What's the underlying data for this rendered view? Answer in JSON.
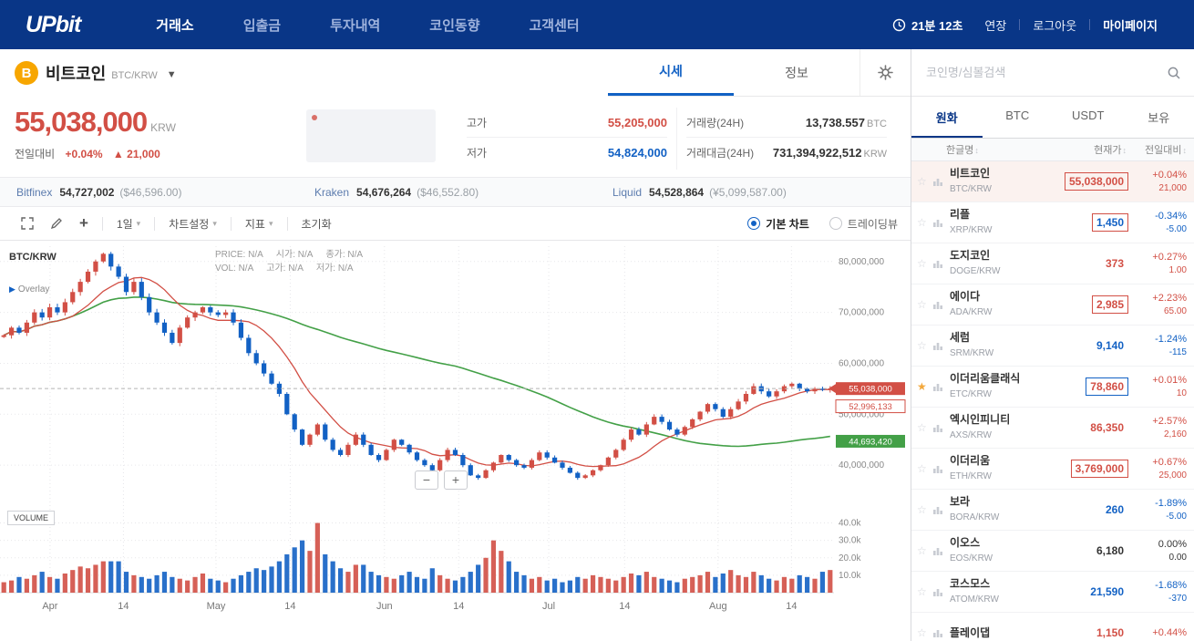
{
  "colors": {
    "up": "#d24f45",
    "down": "#1261c4",
    "ma_green": "#43a047",
    "navy": "#093687",
    "grid": "#e7e7ea"
  },
  "nav": {
    "logo": "UPbit",
    "items": [
      {
        "label": "거래소",
        "active": true
      },
      {
        "label": "입출금",
        "active": false
      },
      {
        "label": "투자내역",
        "active": false
      },
      {
        "label": "코인동향",
        "active": false
      },
      {
        "label": "고객센터",
        "active": false
      }
    ],
    "session": {
      "time": "21분 12초",
      "extend": "연장",
      "logout": "로그아웃",
      "mypage": "마이페이지"
    }
  },
  "coin_header": {
    "name": "비트코인",
    "pair": "BTC/KRW",
    "tabs": [
      "시세",
      "정보"
    ]
  },
  "price_panel": {
    "price": "55,038,000",
    "currency": "KRW",
    "change_label": "전일대비",
    "change_pct": "+0.04%",
    "change_arrow": "▲",
    "change_abs": "21,000",
    "stats": [
      {
        "label": "고가",
        "value": "55,205,000",
        "unit": "",
        "color": "up"
      },
      {
        "label": "저가",
        "value": "54,824,000",
        "unit": "",
        "color": "down"
      },
      {
        "label": "거래량(24H)",
        "value": "13,738.557",
        "unit": "BTC",
        "color": ""
      },
      {
        "label": "거래대금(24H)",
        "value": "731,394,922,512",
        "unit": "KRW",
        "color": ""
      }
    ]
  },
  "exchanges": [
    {
      "name": "Bitfinex",
      "price": "54,727,002",
      "sub": "($46,596.00)"
    },
    {
      "name": "Kraken",
      "price": "54,676,264",
      "sub": "($46,552.80)"
    },
    {
      "name": "Liquid",
      "price": "54,528,864",
      "sub": "(¥5,099,587.00)"
    }
  ],
  "chart_toolbar": {
    "interval": "1일",
    "settings": "차트설정",
    "indicators": "지표",
    "reset": "초기화",
    "radio_basic": "기본 차트",
    "radio_tradingview": "트레이딩뷰"
  },
  "chart": {
    "symbol": "BTC/KRW",
    "overlay_label": "Overlay",
    "info_row1": [
      "PRICE: N/A",
      "시가: N/A",
      "종가: N/A"
    ],
    "info_row2": [
      "VOL: N/A",
      "고가: N/A",
      "저가: N/A"
    ],
    "volume_label": "VOLUME",
    "current_price_label": "55,038,000",
    "ma_red_label": "52,996,133",
    "ma_green_label": "44,693,420"
  },
  "chart_data": {
    "type": "candlestick",
    "symbol": "BTC/KRW",
    "price_axis": {
      "min_millions": 34.3,
      "max_millions": 83,
      "gridlines_millions": [
        80,
        70,
        60,
        50,
        40
      ]
    },
    "volume_axis": {
      "max_thousands": 45,
      "gridlines_thousands": [
        40,
        30,
        20,
        10
      ]
    },
    "current_price_millions": 55.038,
    "ma_red_millions": 52.996133,
    "ma_green_millions": 44.69342,
    "ma_short_period": 10,
    "ma_long_period": 60,
    "x_ticks": [
      {
        "label": "Apr",
        "f": 0.06
      },
      {
        "label": "14",
        "f": 0.148
      },
      {
        "label": "May",
        "f": 0.259
      },
      {
        "label": "14",
        "f": 0.348
      },
      {
        "label": "Jun",
        "f": 0.461
      },
      {
        "label": "14",
        "f": 0.55
      },
      {
        "label": "Jul",
        "f": 0.658
      },
      {
        "label": "14",
        "f": 0.749
      },
      {
        "label": "Aug",
        "f": 0.861
      },
      {
        "label": "14",
        "f": 0.949
      }
    ],
    "closes_millions": [
      65.5,
      67,
      66,
      68,
      70,
      69,
      71,
      70,
      72,
      74,
      76,
      78,
      80,
      81.5,
      79,
      77,
      74,
      76,
      73,
      70,
      68,
      66,
      64,
      67,
      69,
      70,
      71,
      70,
      69.5,
      70,
      68,
      65,
      62,
      60,
      58,
      56,
      54,
      50,
      47,
      44,
      46,
      48,
      45,
      43,
      42,
      44,
      46,
      44,
      42,
      41,
      43,
      45,
      44,
      42.5,
      41,
      40,
      39,
      41,
      43,
      42,
      40,
      38,
      37.5,
      39,
      40.5,
      42,
      41,
      40,
      39.5,
      41,
      42.5,
      41.5,
      40.5,
      39.5,
      38.5,
      37.5,
      38,
      39,
      40,
      41.5,
      43,
      45,
      47,
      46,
      48,
      49.5,
      48.5,
      47,
      46,
      47.5,
      49,
      50.5,
      52,
      51,
      49.5,
      51,
      52.5,
      54,
      55.5,
      54.5,
      53.5,
      54.5,
      55.5,
      56,
      55,
      54.5,
      55,
      54.8,
      55.038
    ],
    "volumes_thousands": [
      6,
      7,
      9,
      8,
      10,
      12,
      9,
      8,
      11,
      13,
      15,
      14,
      16,
      18,
      18,
      18,
      12,
      10,
      9,
      8,
      10,
      12,
      9,
      8,
      7,
      9,
      11,
      8,
      7,
      6,
      8,
      10,
      12,
      14,
      13,
      15,
      18,
      22,
      26,
      30,
      24,
      40,
      22,
      18,
      14,
      12,
      16,
      16,
      12,
      10,
      9,
      8,
      10,
      12,
      9,
      8,
      14,
      10,
      8,
      7,
      9,
      12,
      16,
      20,
      30,
      24,
      18,
      12,
      10,
      8,
      9,
      7,
      8,
      6,
      7,
      9,
      8,
      10,
      9,
      8,
      7,
      9,
      11,
      10,
      12,
      9,
      8,
      7,
      6,
      8,
      9,
      10,
      12,
      9,
      11,
      13,
      10,
      9,
      12,
      10,
      8,
      7,
      9,
      8,
      10,
      9,
      8,
      12,
      13
    ]
  },
  "sidebar": {
    "search_placeholder": "코인명/심볼검색",
    "tabs": [
      "원화",
      "BTC",
      "USDT",
      "보유"
    ],
    "columns": [
      "한글명",
      "현재가",
      "전일대비"
    ],
    "rows": [
      {
        "name": "비트코인",
        "pair": "BTC/KRW",
        "price": "55,038,000",
        "pct": "+0.04%",
        "abs": "21,000",
        "dir": "up",
        "flash": "up",
        "starred": false,
        "selected": true
      },
      {
        "name": "리플",
        "pair": "XRP/KRW",
        "price": "1,450",
        "pct": "-0.34%",
        "abs": "-5.00",
        "dir": "down",
        "flash": "up",
        "starred": false,
        "selected": false
      },
      {
        "name": "도지코인",
        "pair": "DOGE/KRW",
        "price": "373",
        "pct": "+0.27%",
        "abs": "1.00",
        "dir": "up",
        "flash": "",
        "starred": false,
        "selected": false
      },
      {
        "name": "에이다",
        "pair": "ADA/KRW",
        "price": "2,985",
        "pct": "+2.23%",
        "abs": "65.00",
        "dir": "up",
        "flash": "up",
        "starred": false,
        "selected": false
      },
      {
        "name": "세럼",
        "pair": "SRM/KRW",
        "price": "9,140",
        "pct": "-1.24%",
        "abs": "-115",
        "dir": "down",
        "flash": "",
        "starred": false,
        "selected": false
      },
      {
        "name": "이더리움클래식",
        "pair": "ETC/KRW",
        "price": "78,860",
        "pct": "+0.01%",
        "abs": "10",
        "dir": "up",
        "flash": "down",
        "starred": true,
        "selected": false
      },
      {
        "name": "엑시인피니티",
        "pair": "AXS/KRW",
        "price": "86,350",
        "pct": "+2.57%",
        "abs": "2,160",
        "dir": "up",
        "flash": "",
        "starred": false,
        "selected": false
      },
      {
        "name": "이더리움",
        "pair": "ETH/KRW",
        "price": "3,769,000",
        "pct": "+0.67%",
        "abs": "25,000",
        "dir": "up",
        "flash": "up",
        "starred": false,
        "selected": false
      },
      {
        "name": "보라",
        "pair": "BORA/KRW",
        "price": "260",
        "pct": "-1.89%",
        "abs": "-5.00",
        "dir": "down",
        "flash": "",
        "starred": false,
        "selected": false
      },
      {
        "name": "이오스",
        "pair": "EOS/KRW",
        "price": "6,180",
        "pct": "0.00%",
        "abs": "0.00",
        "dir": "even",
        "flash": "",
        "starred": false,
        "selected": false
      },
      {
        "name": "코스모스",
        "pair": "ATOM/KRW",
        "price": "21,590",
        "pct": "-1.68%",
        "abs": "-370",
        "dir": "down",
        "flash": "",
        "starred": false,
        "selected": false
      },
      {
        "name": "플레이댑",
        "pair": "",
        "price": "1,150",
        "pct": "+0.44%",
        "abs": "",
        "dir": "up",
        "flash": "",
        "starred": false,
        "selected": false
      }
    ]
  }
}
